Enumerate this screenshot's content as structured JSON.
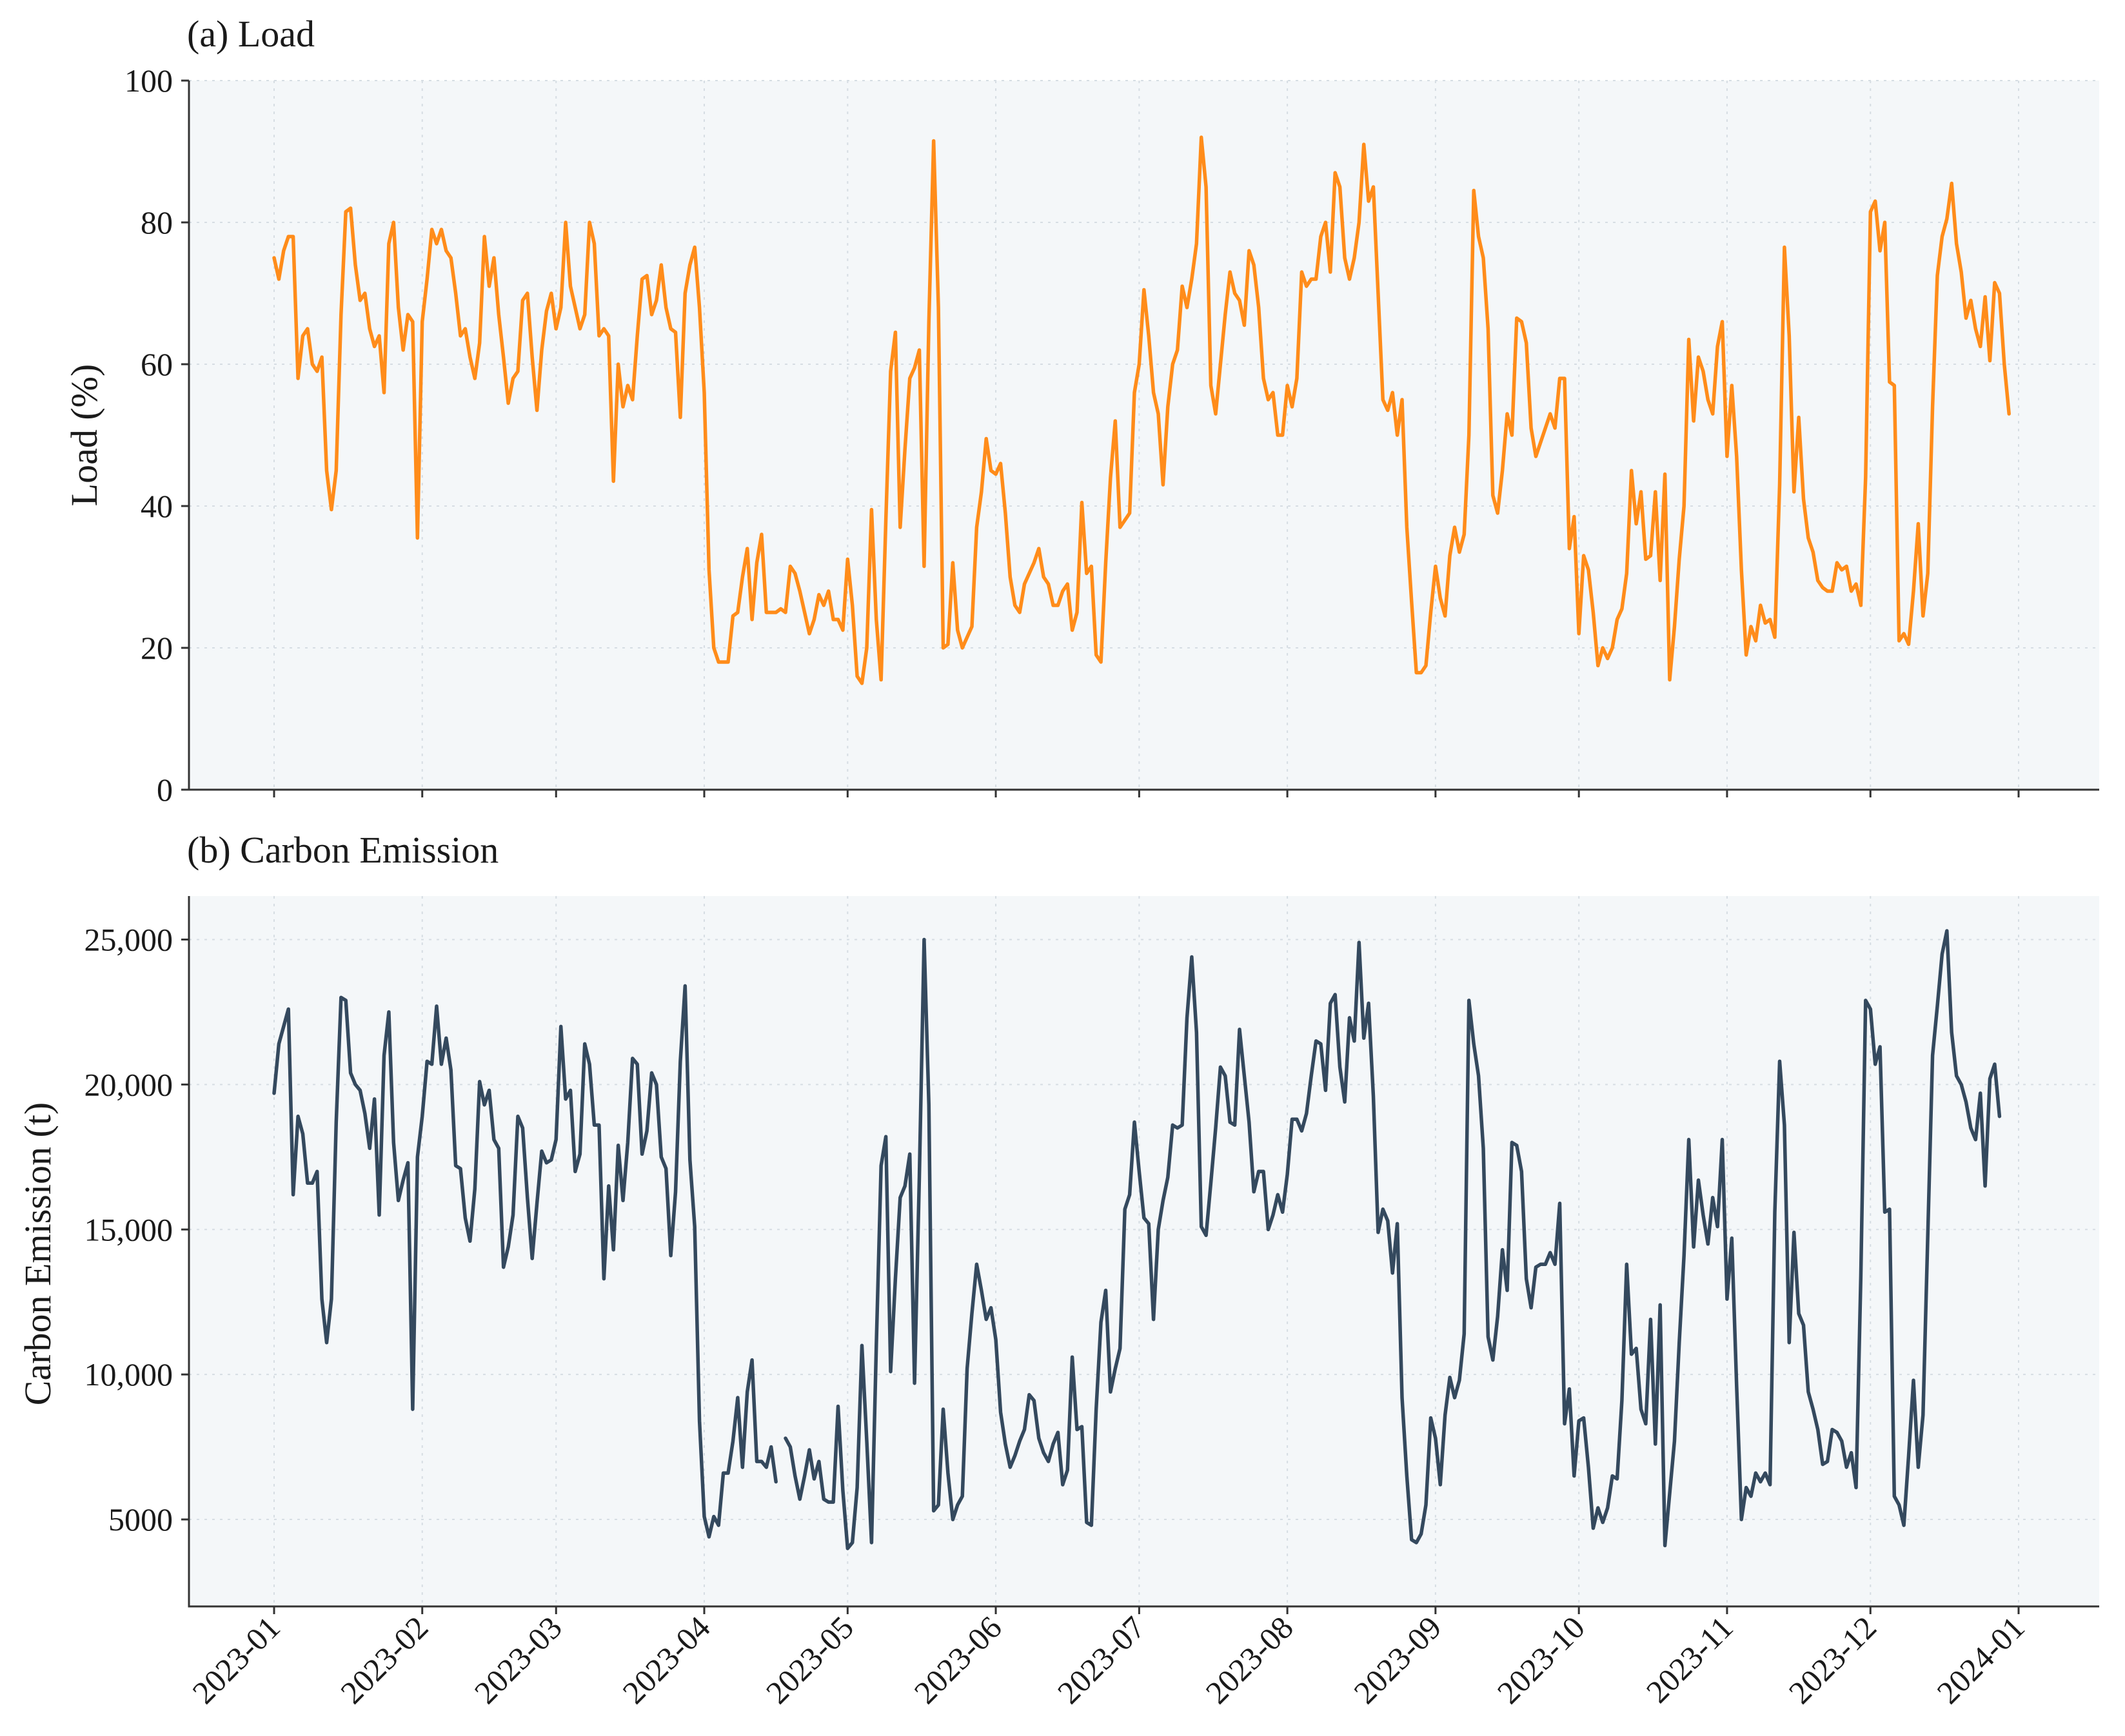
{
  "figure": {
    "background": "#ffffff",
    "plot_background": "#f4f7f9",
    "grid_color": "#d6dde3"
  },
  "chart_data": [
    {
      "type": "line",
      "title": "(a) Load",
      "xlabel": "",
      "ylabel": "Load (%)",
      "ylim": [
        0,
        100
      ],
      "yticks": [
        0,
        20,
        40,
        60,
        80,
        100
      ],
      "ytick_labels": [
        "0",
        "20",
        "40",
        "60",
        "80",
        "100"
      ],
      "grid": true,
      "color": "#ff8c1a",
      "x_start": "2023-01-01",
      "x_step_days": 1,
      "values": [
        75,
        72,
        76,
        78,
        78,
        58,
        64,
        65,
        60,
        59,
        61,
        45,
        39.5,
        45,
        67,
        81.5,
        82,
        74,
        69,
        70,
        65,
        62.5,
        64,
        56,
        77,
        80,
        68,
        62,
        67,
        66,
        35.5,
        66,
        72,
        79,
        77,
        79,
        76,
        75,
        70,
        64,
        65,
        61,
        58,
        63,
        78,
        71,
        75,
        67,
        61,
        54.5,
        58,
        59,
        69,
        70,
        61,
        53.5,
        62,
        67.5,
        70,
        65,
        68,
        80,
        71,
        68,
        65,
        67,
        80,
        77,
        64,
        65,
        64,
        43.5,
        60,
        54,
        57,
        55,
        64,
        72,
        72.5,
        67,
        69,
        74,
        68,
        65,
        64.5,
        52.5,
        70,
        74,
        76.5,
        68,
        56,
        31,
        20,
        18,
        18,
        18,
        24.5,
        25,
        30,
        34,
        24,
        32,
        36,
        25,
        25,
        25,
        25.5,
        25,
        31.5,
        30.5,
        28,
        25,
        22,
        24,
        27.5,
        26,
        28,
        24,
        24,
        22.5,
        32.5,
        26,
        16,
        15,
        20,
        39.5,
        24,
        15.5,
        38,
        59,
        64.5,
        37,
        48,
        58,
        59.5,
        62,
        31.5,
        66,
        91.5,
        68,
        20,
        20.5,
        32,
        22.5,
        20,
        21.5,
        23,
        37,
        42,
        49.5,
        45,
        44.5,
        46,
        39,
        30,
        26,
        25,
        29,
        30.5,
        32,
        34,
        30,
        29,
        26,
        26,
        28,
        29,
        22.5,
        25,
        40.5,
        30.5,
        31.5,
        19,
        18,
        32,
        44,
        52,
        37,
        38,
        39,
        56,
        60,
        70.5,
        64,
        56,
        53,
        43,
        54,
        60,
        62,
        71,
        68,
        72,
        77,
        92,
        85,
        57,
        53,
        60,
        67,
        73,
        70,
        69,
        65.5,
        76,
        74,
        68,
        58,
        55,
        56,
        50,
        50,
        57,
        54,
        58,
        73,
        71,
        72,
        72,
        78,
        80,
        73,
        87,
        85,
        75,
        72,
        75,
        80,
        91,
        83,
        85,
        70,
        55,
        53.5,
        56,
        50,
        55,
        37,
        26.5,
        16.5,
        16.5,
        17.5,
        25,
        31.5,
        27,
        24.5,
        33,
        37,
        33.5,
        36,
        50,
        84.5,
        78,
        75,
        65,
        41.5,
        39,
        45,
        53,
        50,
        66.5,
        66,
        63,
        51,
        47,
        49,
        51,
        53,
        51,
        58,
        58,
        34,
        38.5,
        22,
        33,
        31,
        25,
        17.5,
        20,
        18.5,
        20,
        24,
        25.5,
        30.5,
        45,
        37.5,
        42,
        32.5,
        33,
        42,
        29.5,
        44.5,
        15.5,
        23,
        32.5,
        40,
        63.5,
        52,
        61,
        59,
        55,
        53,
        62.5,
        66,
        47,
        57,
        47,
        31,
        19,
        23,
        21,
        26,
        23.5,
        24,
        21.5,
        43,
        76.5,
        64,
        42,
        52.5,
        41,
        35.5,
        33.5,
        29.5,
        28.5,
        28,
        28,
        32,
        31,
        31.5,
        28,
        29,
        26,
        44,
        81.5,
        83,
        76,
        80,
        57.5,
        57,
        21,
        22,
        20.5,
        28,
        37.5,
        24.5,
        30.5,
        54,
        72.5,
        78,
        80.5,
        85.5,
        77,
        73,
        66.5,
        69,
        65,
        62.5,
        69.5,
        60.5,
        71.5,
        70,
        60,
        53
      ]
    },
    {
      "type": "line",
      "title": "(b) Carbon Emission",
      "xlabel": "",
      "ylabel": "Carbon Emission (t)",
      "ylim": [
        2000,
        26500
      ],
      "yticks": [
        5000,
        10000,
        15000,
        20000,
        25000
      ],
      "ytick_labels": [
        "5000",
        "10,000",
        "15,000",
        "20,000",
        "25,000"
      ],
      "grid": true,
      "color": "#34495e",
      "x_start": "2023-01-01",
      "x_step_days": 1,
      "values": [
        19700,
        21400,
        22000,
        22600,
        16200,
        18900,
        18300,
        16600,
        16600,
        17000,
        12600,
        11100,
        12600,
        18700,
        23000,
        22900,
        20400,
        20000,
        19800,
        19000,
        17800,
        19500,
        15500,
        21000,
        22500,
        18000,
        16000,
        16700,
        17300,
        8800,
        17500,
        18900,
        20800,
        20700,
        22700,
        20700,
        21600,
        20500,
        17200,
        17100,
        15400,
        14600,
        16400,
        20100,
        19300,
        19800,
        18100,
        17800,
        13700,
        14400,
        15500,
        18900,
        18500,
        16100,
        14000,
        15900,
        17700,
        17300,
        17400,
        18100,
        22000,
        19500,
        19800,
        17000,
        17600,
        21400,
        20700,
        18600,
        18600,
        13300,
        16500,
        14300,
        17900,
        16000,
        18000,
        20900,
        20700,
        17600,
        18400,
        20400,
        20000,
        17500,
        17100,
        14100,
        16300,
        20800,
        23400,
        17400,
        15100,
        8400,
        5100,
        4400,
        5100,
        4800,
        6600,
        6600,
        7700,
        9200,
        6800,
        9400,
        10500,
        7000,
        7000,
        6800,
        7500,
        6300,
        null,
        7800,
        7500,
        6500,
        5700,
        6500,
        7400,
        6400,
        7000,
        5700,
        5600,
        5600,
        8900,
        6000,
        4000,
        4200,
        6100,
        11000,
        7700,
        4200,
        11000,
        17200,
        18200,
        10100,
        13300,
        16100,
        16500,
        17600,
        9700,
        16800,
        25000,
        19300,
        5300,
        5500,
        8800,
        6600,
        5000,
        5500,
        5800,
        10200,
        12100,
        13800,
        12900,
        11900,
        12300,
        11200,
        8700,
        7600,
        6800,
        7200,
        7700,
        8100,
        9300,
        9100,
        7800,
        7300,
        7000,
        7600,
        8000,
        6200,
        6700,
        10600,
        8100,
        8200,
        4900,
        4800,
        8800,
        11800,
        12900,
        9400,
        10200,
        10900,
        15700,
        16200,
        18700,
        17000,
        15400,
        15200,
        11900,
        15000,
        16000,
        16800,
        18600,
        18500,
        18600,
        22300,
        24400,
        21800,
        15100,
        14800,
        16600,
        18500,
        20600,
        20300,
        18700,
        18600,
        21900,
        20300,
        18700,
        16300,
        17000,
        17000,
        15000,
        15500,
        16200,
        15600,
        16900,
        18800,
        18800,
        18400,
        19000,
        20300,
        21500,
        21400,
        19800,
        22800,
        23100,
        20600,
        19400,
        22300,
        21500,
        24900,
        21600,
        22800,
        19600,
        14900,
        15700,
        15300,
        13500,
        15200,
        9200,
        6500,
        4300,
        4200,
        4500,
        5500,
        8500,
        7800,
        6200,
        8600,
        9900,
        9200,
        9800,
        11400,
        22900,
        21400,
        20300,
        17800,
        11300,
        10500,
        12000,
        14300,
        12900,
        18000,
        17900,
        17000,
        13300,
        12300,
        13700,
        13800,
        13800,
        14200,
        13800,
        15900,
        8300,
        9500,
        6500,
        8400,
        8500,
        6800,
        4700,
        5400,
        4900,
        5400,
        6500,
        6400,
        9100,
        13800,
        10700,
        10900,
        8800,
        8300,
        11900,
        7600,
        12400,
        4100,
        5900,
        7700,
        11100,
        14100,
        18100,
        14400,
        16700,
        15500,
        14500,
        16100,
        15100,
        18100,
        12600,
        14700,
        9600,
        5000,
        6100,
        5800,
        6600,
        6300,
        6600,
        6200,
        15600,
        20800,
        18600,
        11100,
        14900,
        12100,
        11700,
        9400,
        8800,
        8100,
        6900,
        7000,
        8100,
        8000,
        7700,
        6800,
        7300,
        6100,
        13400,
        22900,
        22600,
        20700,
        21300,
        15600,
        15700,
        5800,
        5500,
        4800,
        7200,
        9800,
        6800,
        8600,
        14800,
        21000,
        22700,
        24500,
        25300,
        21800,
        20300,
        20000,
        19400,
        18500,
        18100,
        19700,
        16500,
        20200,
        20700,
        18900
      ]
    }
  ],
  "x_axis": {
    "tick_labels": [
      "2023-01",
      "2023-02",
      "2023-03",
      "2023-04",
      "2023-05",
      "2023-06",
      "2023-07",
      "2023-08",
      "2023-09",
      "2023-10",
      "2023-11",
      "2023-12",
      "2024-01"
    ],
    "tick_day_index": [
      0,
      31,
      59,
      90,
      120,
      151,
      181,
      212,
      243,
      273,
      304,
      334,
      365
    ]
  }
}
